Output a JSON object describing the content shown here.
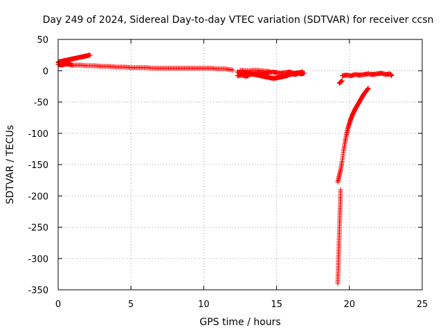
{
  "chart_data": {
    "type": "scatter",
    "title": "Day 249 of 2024, Sidereal Day-to-day VTEC variation (SDTVAR) for receiver ccsn",
    "xlabel": "GPS time / hours",
    "ylabel": "SDTVAR / TECUs",
    "xlim": [
      0,
      25
    ],
    "ylim": [
      -350,
      50
    ],
    "xticks": [
      "0",
      "5",
      "10",
      "15",
      "20",
      "25"
    ],
    "yticks": [
      "50",
      "0",
      "-50",
      "-100",
      "-150",
      "-200",
      "-250",
      "-300",
      "-350"
    ],
    "grid": true,
    "marker": "+",
    "colors": {
      "series": "#ff0000"
    },
    "series": [
      {
        "segments": [
          {
            "x": [
              0.0,
              0.2,
              0.4,
              0.6,
              0.8,
              1.0,
              1.2,
              1.4,
              1.6,
              1.8,
              2.0,
              2.2
            ],
            "y": [
              14,
              15,
              16,
              17,
              18,
              19,
              20,
              21,
              22,
              23,
              24,
              25
            ]
          },
          {
            "x": [
              0.0,
              0.2,
              0.4,
              0.6,
              0.8,
              1.0,
              1.5,
              2.0,
              2.5,
              3.0,
              3.5,
              4.0,
              4.5,
              5.0,
              5.5,
              6.0,
              6.5,
              7.0,
              7.5,
              8.0,
              8.5,
              9.0,
              9.5,
              10.0,
              10.5,
              11.0,
              11.5,
              12.0
            ],
            "y": [
              10,
              9,
              10,
              11,
              10,
              9,
              9,
              8,
              8,
              7,
              7,
              6,
              6,
              5,
              5,
              5,
              4,
              4,
              4,
              4,
              4,
              4,
              4,
              4,
              4,
              3,
              3,
              1
            ]
          },
          {
            "x": [
              0.0,
              0.2,
              0.4,
              0.6,
              0.8
            ],
            "y": [
              13,
              12,
              11,
              13,
              12
            ]
          },
          {
            "x": [
              12.3,
              12.5,
              12.7,
              12.9,
              13.1,
              13.3,
              13.5,
              13.7,
              13.9,
              14.1,
              14.3,
              14.5,
              14.7,
              14.9,
              15.1,
              15.3,
              15.5,
              15.7,
              15.9,
              16.1,
              16.3,
              16.5,
              16.7,
              16.9
            ],
            "y": [
              -2,
              -3,
              -4,
              -3,
              -4,
              -5,
              -6,
              -7,
              -8,
              -9,
              -10,
              -11,
              -12,
              -12,
              -11,
              -10,
              -9,
              -8,
              -6,
              -5,
              -6,
              -4,
              -5,
              -4
            ]
          },
          {
            "x": [
              12.3,
              12.6,
              12.9,
              13.2,
              13.5,
              13.8,
              14.1,
              14.4,
              14.7,
              15.0,
              15.3,
              15.6,
              15.9,
              16.2,
              16.5,
              16.8
            ],
            "y": [
              -8,
              -7,
              -9,
              -6,
              -5,
              -4,
              -5,
              -3,
              -2,
              -3,
              -4,
              -3,
              -2,
              -4,
              -3,
              -2
            ]
          },
          {
            "x": [
              12.5,
              13.0,
              13.5,
              14.0,
              14.5
            ],
            "y": [
              1,
              0,
              1,
              0,
              -1
            ]
          },
          {
            "x": [
              19.3,
              19.4,
              19.5
            ],
            "y": [
              -20,
              -18,
              -16
            ]
          },
          {
            "x": [
              19.5,
              19.8,
              20.1,
              20.4,
              20.7,
              21.0,
              21.3,
              21.6,
              21.9,
              22.2,
              22.5,
              22.8,
              22.9
            ],
            "y": [
              -8,
              -7,
              -8,
              -6,
              -7,
              -6,
              -5,
              -6,
              -5,
              -4,
              -6,
              -5,
              -8
            ]
          },
          {
            "x": [
              19.2,
              19.3,
              19.4,
              19.5,
              19.6,
              19.7,
              19.8,
              19.9,
              20.0,
              20.1,
              20.2,
              20.3,
              20.4,
              20.5,
              20.6,
              20.7,
              20.8,
              20.9,
              21.0,
              21.1,
              21.2,
              21.3
            ],
            "y": [
              -178,
              -168,
              -158,
              -145,
              -128,
              -114,
              -102,
              -92,
              -84,
              -77,
              -71,
              -66,
              -61,
              -57,
              -53,
              -49,
              -45,
              -41,
              -37,
              -34,
              -31,
              -28
            ]
          },
          {
            "x": [
              19.2,
              19.22,
              19.24,
              19.26,
              19.28,
              19.3,
              19.32,
              19.34,
              19.36,
              19.38,
              19.4
            ],
            "y": [
              -340,
              -325,
              -310,
              -295,
              -280,
              -265,
              -250,
              -235,
              -220,
              -205,
              -190
            ]
          }
        ]
      }
    ]
  }
}
